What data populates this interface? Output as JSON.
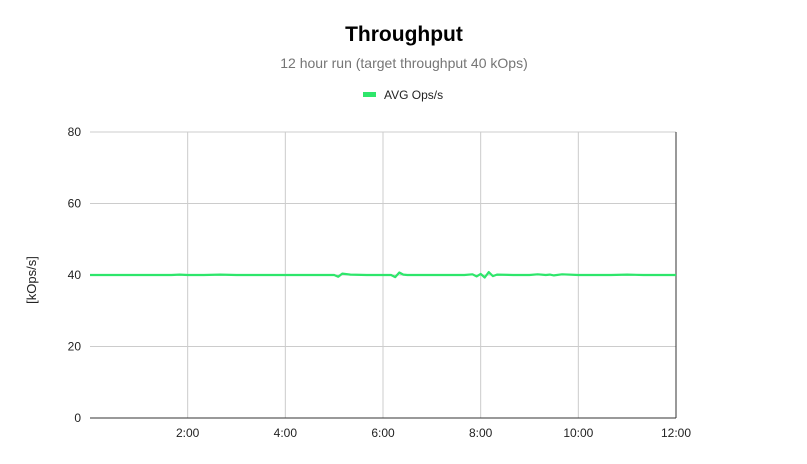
{
  "chart_data": {
    "type": "line",
    "title": "Throughput",
    "subtitle": "12 hour run (target throughput 40 kOps)",
    "xlabel": "",
    "ylabel": "[kOps/s]",
    "ylim": [
      0,
      80
    ],
    "xlim": [
      0,
      720
    ],
    "yticks": [
      0,
      20,
      40,
      60,
      80
    ],
    "xticks": [
      {
        "value": 120,
        "label": "2:00"
      },
      {
        "value": 240,
        "label": "4:00"
      },
      {
        "value": 360,
        "label": "6:00"
      },
      {
        "value": 480,
        "label": "8:00"
      },
      {
        "value": 600,
        "label": "10:00"
      },
      {
        "value": 720,
        "label": "12:00"
      }
    ],
    "grid": true,
    "legend_position": "top",
    "series": [
      {
        "name": "AVG Ops/s",
        "color": "#2ee66b",
        "x": [
          0,
          20,
          40,
          60,
          80,
          100,
          110,
          120,
          140,
          160,
          180,
          200,
          220,
          240,
          260,
          280,
          300,
          305,
          310,
          320,
          340,
          360,
          370,
          375,
          380,
          385,
          390,
          400,
          420,
          440,
          460,
          470,
          475,
          480,
          485,
          490,
          495,
          500,
          520,
          540,
          550,
          560,
          565,
          570,
          580,
          600,
          620,
          640,
          660,
          680,
          700,
          720
        ],
        "values": [
          40,
          40,
          40,
          40,
          40,
          40,
          40.1,
          40,
          40,
          40.1,
          40,
          40,
          40,
          40,
          40,
          40,
          40,
          39.5,
          40.4,
          40.1,
          40,
          40,
          40,
          39.4,
          40.7,
          40.1,
          40,
          40,
          40,
          40,
          40,
          40.2,
          39.6,
          40.3,
          39.3,
          40.8,
          39.7,
          40.1,
          40,
          40,
          40.2,
          40,
          40.1,
          39.9,
          40.2,
          40,
          40,
          40,
          40.1,
          40,
          40,
          40
        ]
      }
    ]
  }
}
